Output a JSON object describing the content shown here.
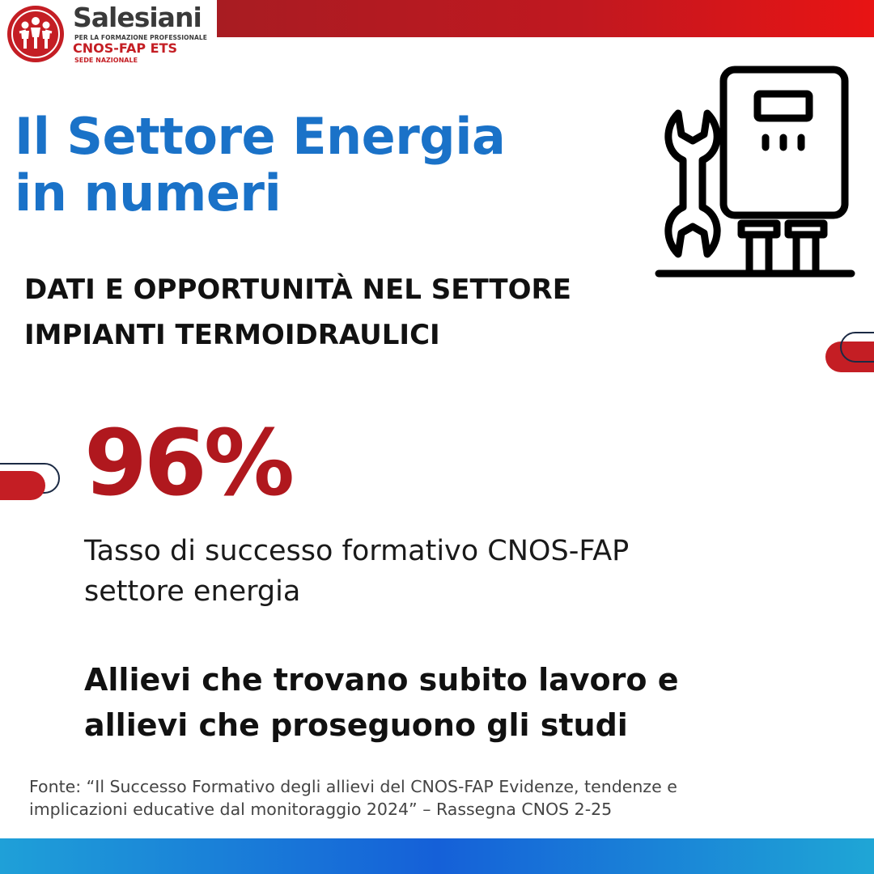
{
  "brand": {
    "name": "Salesiani",
    "subtitle": "PER LA FORMAZIONE PROFESSIONALE",
    "org": "CNOS-FAP ETS",
    "seat": "SEDE NAZIONALE",
    "accent_red": "#c41e24",
    "accent_blue": "#1a72c8"
  },
  "header": {
    "title_line1": "Il Settore Energia",
    "title_line2": "in numeri",
    "subtitle_line1": "DATI E OPPORTUNITÀ NEL SETTORE",
    "subtitle_line2": "IMPIANTI TERMOIDRAULICI"
  },
  "stat": {
    "value": "96%",
    "desc_line1": "Tasso di successo formativo CNOS-FAP",
    "desc_line2": "settore energia"
  },
  "highlight": {
    "line1": "Allievi che trovano subito lavoro e",
    "line2": "allievi che proseguono gli studi"
  },
  "source": {
    "line1": "Fonte: “Il Successo Formativo degli allievi del CNOS-FAP Evidenze, tendenze e",
    "line2": "implicazioni educative dal monitoraggio 2024” – Rassegna CNOS 2-25"
  },
  "icons": {
    "logo": "salesiani-logo-icon",
    "illustration": "boiler-wrench-icon"
  }
}
